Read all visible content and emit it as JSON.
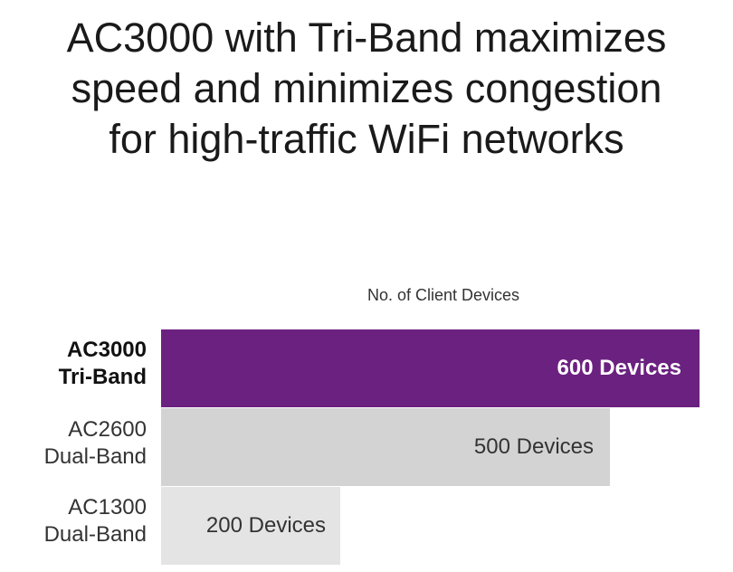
{
  "chart_data": {
    "type": "bar",
    "orientation": "horizontal",
    "title_lines": [
      "AC3000 with Tri-Band maximizes",
      "speed and minimizes congestion",
      "for high-traffic WiFi networks"
    ],
    "xlabel": "No. of Client Devices",
    "xlim": [
      0,
      600
    ],
    "grid": false,
    "categories": [
      {
        "line1": "AC3000",
        "line2": "Tri-Band"
      },
      {
        "line1": "AC2600",
        "line2": "Dual-Band"
      },
      {
        "line1": "AC1300",
        "line2": "Dual-Band"
      }
    ],
    "values": [
      600,
      500,
      200
    ],
    "data_labels": [
      "600 Devices",
      "500 Devices",
      "200 Devices"
    ],
    "colors": [
      "#6b2180",
      "#d3d3d3",
      "#e4e4e4"
    ],
    "label_colors": [
      "#ffffff",
      "#333333",
      "#333333"
    ],
    "highlighted": [
      true,
      false,
      false
    ]
  }
}
